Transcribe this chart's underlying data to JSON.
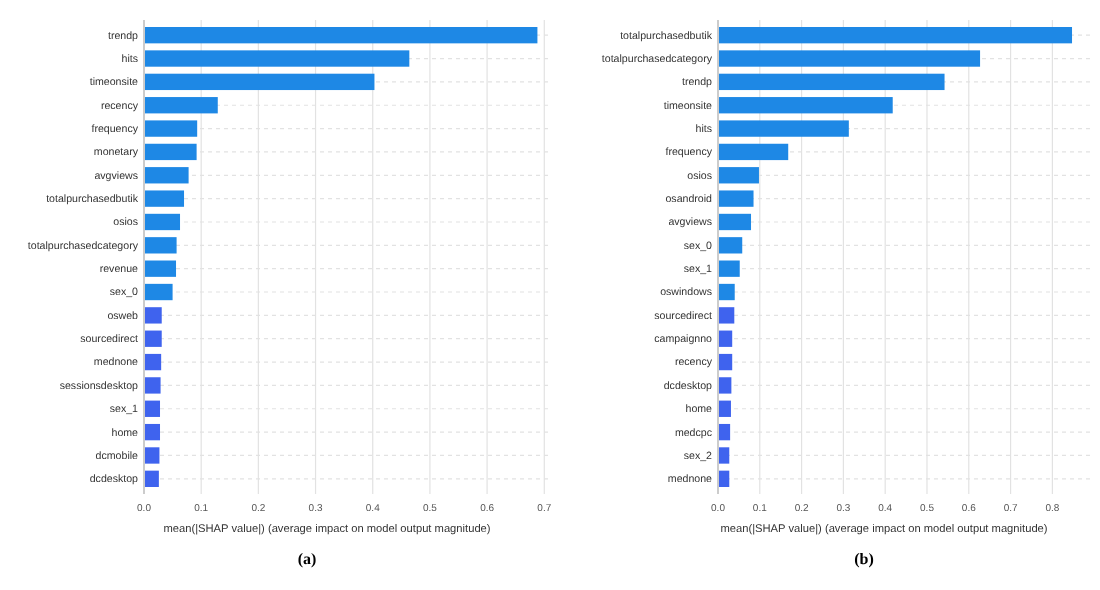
{
  "chart_data": [
    {
      "type": "bar",
      "orientation": "horizontal",
      "categories": [
        "trendp",
        "hits",
        "timeonsite",
        "recency",
        "frequency",
        "monetary",
        "avgviews",
        "totalpurchasedbutik",
        "osios",
        "totalpurchasedcategory",
        "revenue",
        "sex_0",
        "osweb",
        "sourcedirect",
        "mednone",
        "sessionsdesktop",
        "sex_1",
        "home",
        "dcmobile",
        "dcdesktop"
      ],
      "values": [
        0.688,
        0.464,
        0.403,
        0.129,
        0.093,
        0.092,
        0.078,
        0.07,
        0.063,
        0.057,
        0.056,
        0.05,
        0.031,
        0.031,
        0.03,
        0.029,
        0.028,
        0.028,
        0.027,
        0.026
      ],
      "colors": [
        "#1e88e5",
        "#1e88e5",
        "#1e88e5",
        "#1e88e5",
        "#1e88e5",
        "#1e88e5",
        "#1e88e5",
        "#1e88e5",
        "#1e88e5",
        "#1e88e5",
        "#1e88e5",
        "#1e88e5",
        "#3f63ee",
        "#3f63ee",
        "#3f63ee",
        "#3f63ee",
        "#3f63ee",
        "#3f63ee",
        "#3f63ee",
        "#3f63ee"
      ],
      "xlim": [
        0,
        0.71
      ],
      "xticks": [
        {
          "value": 0,
          "label": "0.0"
        },
        0.1,
        0.2,
        0.3,
        0.4,
        0.5,
        0.6,
        0.7
      ],
      "xlabel": "mean(|SHAP value|) (average impact on model output magnitude)",
      "grid": true,
      "annotations": [
        "(a)"
      ]
    },
    {
      "type": "bar",
      "orientation": "horizontal",
      "categories": [
        "totalpurchasedbutik",
        "totalpurchasedcategory",
        "trendp",
        "timeonsite",
        "hits",
        "frequency",
        "osios",
        "osandroid",
        "avgviews",
        "sex_0",
        "sex_1",
        "oswindows",
        "sourcedirect",
        "campaignno",
        "recency",
        "dcdesktop",
        "home",
        "medcpc",
        "sex_2",
        "mednone"
      ],
      "values": [
        0.847,
        0.627,
        0.542,
        0.418,
        0.313,
        0.168,
        0.098,
        0.085,
        0.079,
        0.058,
        0.052,
        0.04,
        0.039,
        0.034,
        0.034,
        0.032,
        0.031,
        0.029,
        0.027,
        0.027
      ],
      "colors": [
        "#1e88e5",
        "#1e88e5",
        "#1e88e5",
        "#1e88e5",
        "#1e88e5",
        "#1e88e5",
        "#1e88e5",
        "#1e88e5",
        "#1e88e5",
        "#1e88e5",
        "#1e88e5",
        "#1e88e5",
        "#3f63ee",
        "#3f63ee",
        "#3f63ee",
        "#3f63ee",
        "#3f63ee",
        "#3f63ee",
        "#3f63ee",
        "#3f63ee"
      ],
      "xlim": [
        0,
        0.89
      ],
      "xticks": [
        {
          "value": 0,
          "label": "0.0"
        },
        0.1,
        0.2,
        0.3,
        0.4,
        0.5,
        0.6,
        0.7,
        0.8
      ],
      "xlabel": "mean(|SHAP value|) (average impact on model output magnitude)",
      "grid": true,
      "annotations": [
        "(b)"
      ]
    }
  ]
}
